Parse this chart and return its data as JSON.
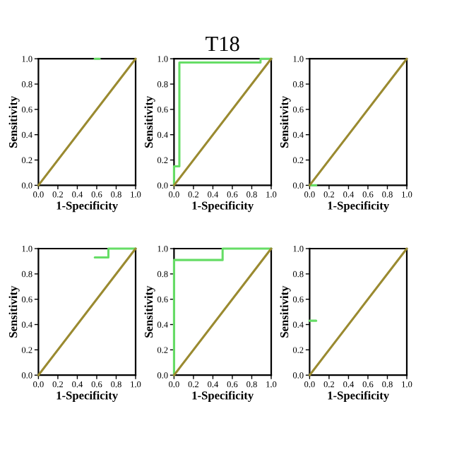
{
  "chart_data": [
    {
      "type": "line",
      "xlabel": "1-Specificity",
      "ylabel": "Sensitivity",
      "xlim": [
        0,
        1
      ],
      "ylim": [
        0,
        1
      ],
      "xticks": [
        {
          "value": 0,
          "label": "0.0"
        },
        {
          "value": 0.2,
          "label": "0.2"
        },
        {
          "value": 0.4,
          "label": "0.4"
        },
        {
          "value": 0.6,
          "label": "0.6"
        },
        {
          "value": 0.8,
          "label": "0.8"
        },
        {
          "value": 1,
          "label": "1.0"
        }
      ],
      "yticks": [
        {
          "value": 0,
          "label": "0.0"
        },
        {
          "value": 0.2,
          "label": "0.2"
        },
        {
          "value": 0.4,
          "label": "0.4"
        },
        {
          "value": 0.6,
          "label": "0.6"
        },
        {
          "value": 0.8,
          "label": "0.8"
        },
        {
          "value": 1,
          "label": "1.0"
        }
      ],
      "series": [
        {
          "color": "#66dd66",
          "x": [
            0.58,
            0.63
          ],
          "values": [
            1.0,
            1.0
          ]
        },
        {
          "color": "#9a8a30",
          "x": [
            0,
            1
          ],
          "values": [
            0,
            1
          ]
        }
      ]
    },
    {
      "type": "line",
      "title": "T18",
      "xlabel": "1-Specificity",
      "ylabel": "Sensitivity",
      "xlim": [
        0,
        1
      ],
      "ylim": [
        0,
        1
      ],
      "xticks": [
        {
          "value": 0,
          "label": "0.0"
        },
        {
          "value": 0.2,
          "label": "0.2"
        },
        {
          "value": 0.4,
          "label": "0.4"
        },
        {
          "value": 0.6,
          "label": "0.6"
        },
        {
          "value": 0.8,
          "label": "0.8"
        },
        {
          "value": 1,
          "label": "1.0"
        }
      ],
      "yticks": [
        {
          "value": 0,
          "label": "0.0"
        },
        {
          "value": 0.2,
          "label": "0.2"
        },
        {
          "value": 0.4,
          "label": "0.4"
        },
        {
          "value": 0.6,
          "label": "0.6"
        },
        {
          "value": 0.8,
          "label": "0.8"
        },
        {
          "value": 1,
          "label": "1.0"
        }
      ],
      "series": [
        {
          "color": "#66dd66",
          "x": [
            0,
            0,
            0.055,
            0.055,
            0.89,
            0.89,
            1
          ],
          "values": [
            0,
            0.15,
            0.15,
            0.97,
            0.97,
            1.0,
            1.0
          ]
        },
        {
          "color": "#9a8a30",
          "x": [
            0,
            1
          ],
          "values": [
            0,
            1
          ]
        }
      ]
    },
    {
      "type": "line",
      "xlabel": "1-Specificity",
      "ylabel": "Sensitivity",
      "xlim": [
        0,
        1
      ],
      "ylim": [
        0,
        1
      ],
      "xticks": [
        {
          "value": 0,
          "label": "0.0"
        },
        {
          "value": 0.2,
          "label": "0.2"
        },
        {
          "value": 0.4,
          "label": "0.4"
        },
        {
          "value": 0.6,
          "label": "0.6"
        },
        {
          "value": 0.8,
          "label": "0.8"
        },
        {
          "value": 1,
          "label": "1.0"
        }
      ],
      "yticks": [
        {
          "value": 0,
          "label": "0.0"
        },
        {
          "value": 0.2,
          "label": "0.2"
        },
        {
          "value": 0.4,
          "label": "0.4"
        },
        {
          "value": 0.6,
          "label": "0.6"
        },
        {
          "value": 0.8,
          "label": "0.8"
        },
        {
          "value": 1,
          "label": "1.0"
        }
      ],
      "series": [
        {
          "color": "#66dd66",
          "x": [
            0,
            0.067
          ],
          "values": [
            0,
            0
          ]
        },
        {
          "color": "#9a8a30",
          "x": [
            0,
            1
          ],
          "values": [
            0,
            1
          ]
        }
      ]
    },
    {
      "type": "line",
      "xlabel": "1-Specificity",
      "ylabel": "Sensitivity",
      "xlim": [
        0,
        1
      ],
      "ylim": [
        0,
        1
      ],
      "xticks": [
        {
          "value": 0,
          "label": "0.0"
        },
        {
          "value": 0.2,
          "label": "0.2"
        },
        {
          "value": 0.4,
          "label": "0.4"
        },
        {
          "value": 0.6,
          "label": "0.6"
        },
        {
          "value": 0.8,
          "label": "0.8"
        },
        {
          "value": 1,
          "label": "1.0"
        }
      ],
      "yticks": [
        {
          "value": 0,
          "label": "0.0"
        },
        {
          "value": 0.2,
          "label": "0.2"
        },
        {
          "value": 0.4,
          "label": "0.4"
        },
        {
          "value": 0.6,
          "label": "0.6"
        },
        {
          "value": 0.8,
          "label": "0.8"
        },
        {
          "value": 1,
          "label": "1.0"
        }
      ],
      "series": [
        {
          "color": "#66dd66",
          "x": [
            0.58,
            0.72,
            0.72,
            1
          ],
          "values": [
            0.93,
            0.93,
            1.0,
            1.0
          ]
        },
        {
          "color": "#9a8a30",
          "x": [
            0,
            1
          ],
          "values": [
            0,
            1
          ]
        }
      ]
    },
    {
      "type": "line",
      "xlabel": "1-Specificity",
      "ylabel": "Sensitivity",
      "xlim": [
        0,
        1
      ],
      "ylim": [
        0,
        1
      ],
      "xticks": [
        {
          "value": 0,
          "label": "0.0"
        },
        {
          "value": 0.2,
          "label": "0.2"
        },
        {
          "value": 0.4,
          "label": "0.4"
        },
        {
          "value": 0.6,
          "label": "0.6"
        },
        {
          "value": 0.8,
          "label": "0.8"
        },
        {
          "value": 1,
          "label": "1.0"
        }
      ],
      "yticks": [
        {
          "value": 0,
          "label": "0.0"
        },
        {
          "value": 0.2,
          "label": "0.2"
        },
        {
          "value": 0.4,
          "label": "0.4"
        },
        {
          "value": 0.6,
          "label": "0.6"
        },
        {
          "value": 0.8,
          "label": "0.8"
        },
        {
          "value": 1,
          "label": "1.0"
        }
      ],
      "series": [
        {
          "color": "#66dd66",
          "x": [
            0,
            0,
            0.5,
            0.5,
            1
          ],
          "values": [
            0,
            0.91,
            0.91,
            1.0,
            1.0
          ]
        },
        {
          "color": "#9a8a30",
          "x": [
            0,
            1
          ],
          "values": [
            0,
            1
          ]
        }
      ]
    },
    {
      "type": "line",
      "xlabel": "1-Specificity",
      "ylabel": "Sensitivity",
      "xlim": [
        0,
        1
      ],
      "ylim": [
        0,
        1
      ],
      "xticks": [
        {
          "value": 0,
          "label": "0.0"
        },
        {
          "value": 0.2,
          "label": "0.2"
        },
        {
          "value": 0.4,
          "label": "0.4"
        },
        {
          "value": 0.6,
          "label": "0.6"
        },
        {
          "value": 0.8,
          "label": "0.8"
        },
        {
          "value": 1,
          "label": "1.0"
        }
      ],
      "yticks": [
        {
          "value": 0,
          "label": "0.0"
        },
        {
          "value": 0.2,
          "label": "0.2"
        },
        {
          "value": 0.4,
          "label": "0.4"
        },
        {
          "value": 0.6,
          "label": "0.6"
        },
        {
          "value": 0.8,
          "label": "0.8"
        },
        {
          "value": 1,
          "label": "1.0"
        }
      ],
      "series": [
        {
          "color": "#66dd66",
          "x": [
            0,
            0.067
          ],
          "values": [
            0.43,
            0.43
          ]
        },
        {
          "color": "#9a8a30",
          "x": [
            0,
            1
          ],
          "values": [
            0,
            1
          ]
        }
      ]
    }
  ]
}
